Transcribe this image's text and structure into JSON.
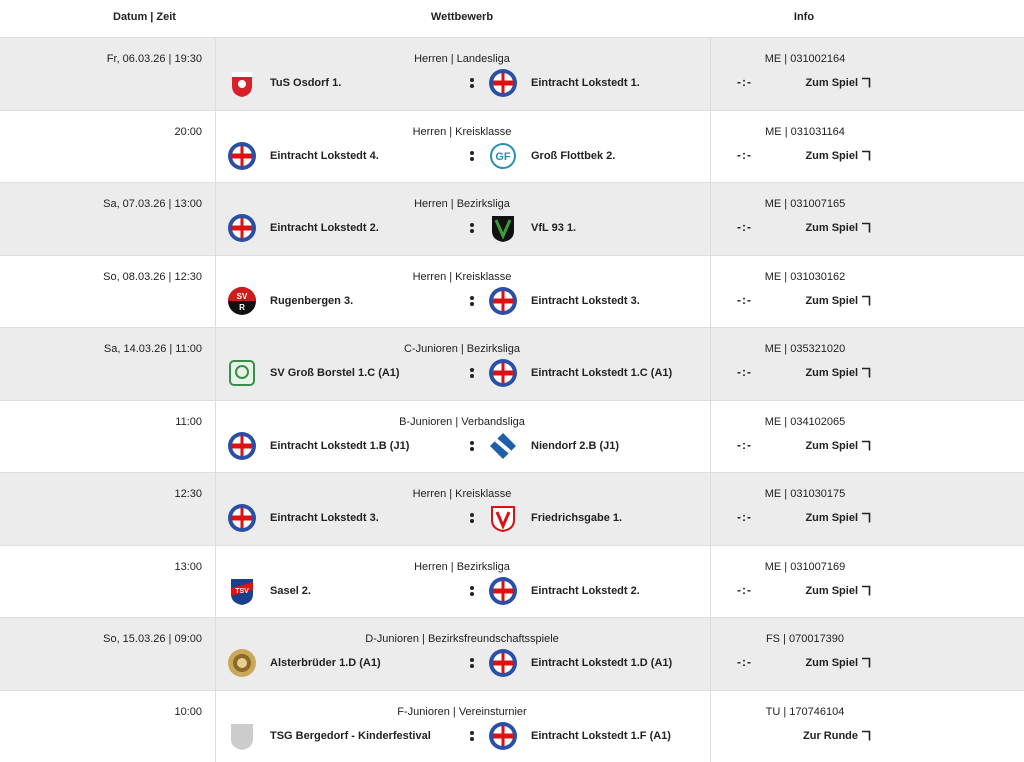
{
  "header": {
    "date": "Datum | Zeit",
    "competition": "Wettbewerb",
    "info": "Info"
  },
  "rows": [
    {
      "date": "Fr, 06.03.26 | 19:30",
      "competition": "Herren | Landesliga",
      "home": "TuS Osdorf 1.",
      "away": "Eintracht Lokstedt 1.",
      "code": "ME | 031002164",
      "score": "-:-",
      "link": "Zum Spiel"
    },
    {
      "date": "20:00",
      "competition": "Herren | Kreisklasse",
      "home": "Eintracht Lokstedt 4.",
      "away": "Groß Flottbek 2.",
      "code": "ME | 031031164",
      "score": "-:-",
      "link": "Zum Spiel"
    },
    {
      "date": "Sa, 07.03.26 | 13:00",
      "competition": "Herren | Bezirksliga",
      "home": "Eintracht Lokstedt 2.",
      "away": "VfL 93 1.",
      "code": "ME | 031007165",
      "score": "-:-",
      "link": "Zum Spiel"
    },
    {
      "date": "So, 08.03.26 | 12:30",
      "competition": "Herren | Kreisklasse",
      "home": "Rugenbergen 3.",
      "away": "Eintracht Lokstedt 3.",
      "code": "ME | 031030162",
      "score": "-:-",
      "link": "Zum Spiel"
    },
    {
      "date": "Sa, 14.03.26 | 11:00",
      "competition": "C-Junioren | Bezirksliga",
      "home": "SV Groß Borstel 1.C (A1)",
      "away": "Eintracht Lokstedt 1.C (A1)",
      "code": "ME | 035321020",
      "score": "-:-",
      "link": "Zum Spiel"
    },
    {
      "date": "11:00",
      "competition": "B-Junioren | Verbandsliga",
      "home": "Eintracht Lokstedt 1.B (J1)",
      "away": "Niendorf 2.B (J1)",
      "code": "ME | 034102065",
      "score": "-:-",
      "link": "Zum Spiel"
    },
    {
      "date": "12:30",
      "competition": "Herren | Kreisklasse",
      "home": "Eintracht Lokstedt 3.",
      "away": "Friedrichsgabe 1.",
      "code": "ME | 031030175",
      "score": "-:-",
      "link": "Zum Spiel"
    },
    {
      "date": "13:00",
      "competition": "Herren | Bezirksliga",
      "home": "Sasel 2.",
      "away": "Eintracht Lokstedt 2.",
      "code": "ME | 031007169",
      "score": "-:-",
      "link": "Zum Spiel"
    },
    {
      "date": "So, 15.03.26 | 09:00",
      "competition": "D-Junioren | Bezirksfreundschaftsspiele",
      "home": "Alsterbrüder 1.D (A1)",
      "away": "Eintracht Lokstedt 1.D (A1)",
      "code": "FS | 070017390",
      "score": "-:-",
      "link": "Zum Spiel"
    },
    {
      "date": "10:00",
      "competition": "F-Junioren | Vereinsturnier",
      "home": "TSG Bergedorf - Kinderfestival",
      "away": "Eintracht Lokstedt 1.F (A1)",
      "code": "TU | 170746104",
      "link": "Zur Runde"
    }
  ]
}
